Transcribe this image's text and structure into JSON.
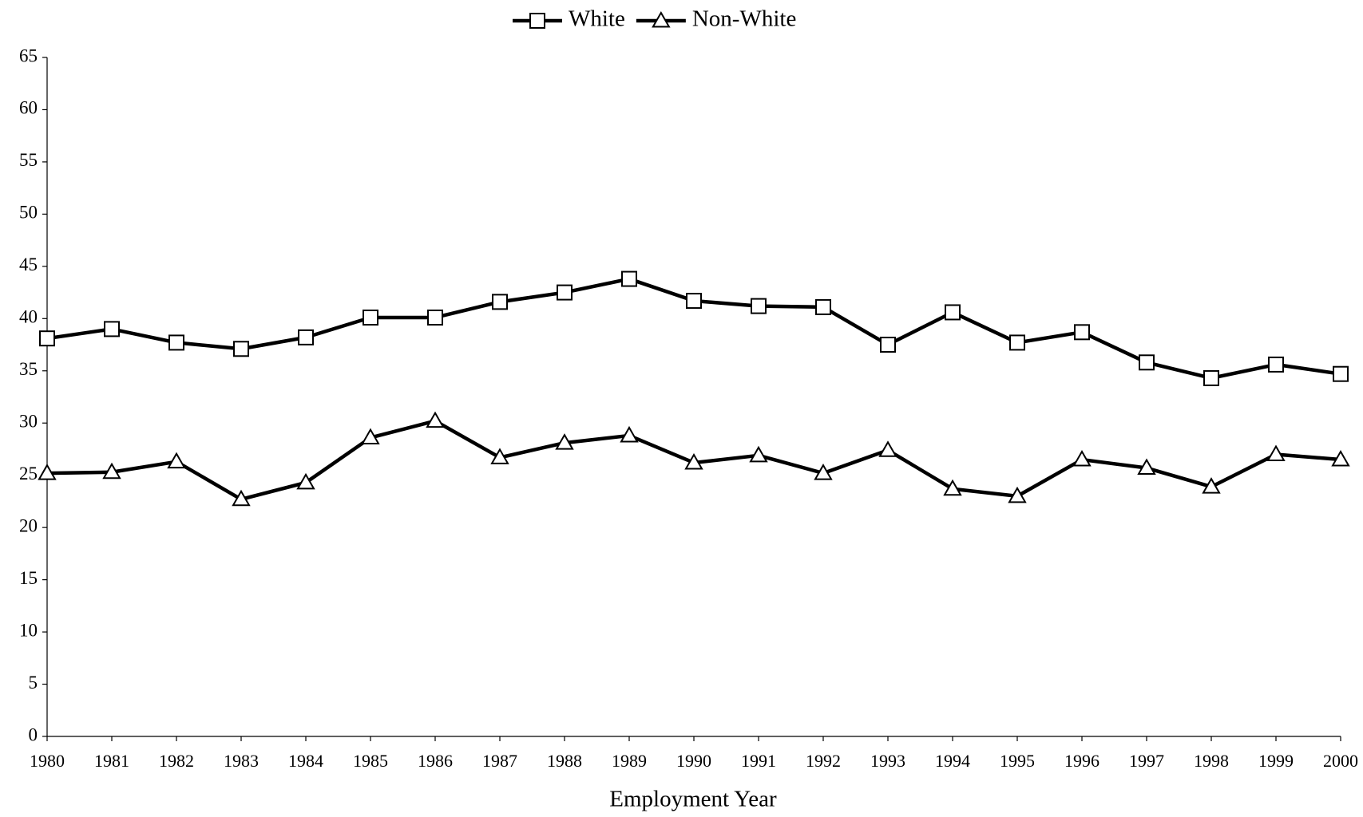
{
  "chart_data": {
    "type": "line",
    "x_label": "Employment Year",
    "categories": [
      "1980",
      "1981",
      "1982",
      "1983",
      "1984",
      "1985",
      "1986",
      "1987",
      "1988",
      "1989",
      "1990",
      "1991",
      "1992",
      "1993",
      "1994",
      "1995",
      "1996",
      "1997",
      "1998",
      "1999",
      "2000"
    ],
    "series": [
      {
        "name": "White",
        "color": "#000000",
        "marker": "square",
        "values": [
          38.1,
          39.0,
          37.7,
          37.1,
          38.2,
          40.1,
          40.1,
          41.6,
          42.5,
          43.8,
          41.7,
          41.2,
          41.1,
          37.5,
          40.6,
          37.7,
          38.7,
          35.8,
          34.3,
          35.6,
          34.7
        ]
      },
      {
        "name": "Non-White",
        "color": "#000000",
        "marker": "triangle",
        "values": [
          25.2,
          25.3,
          26.3,
          22.7,
          24.3,
          28.6,
          30.2,
          26.7,
          28.1,
          28.8,
          26.2,
          26.9,
          25.2,
          27.4,
          23.7,
          23.0,
          26.5,
          25.7,
          23.9,
          27.0,
          26.5
        ]
      }
    ],
    "ylim": [
      0,
      65
    ],
    "yticks": [
      0,
      5,
      10,
      15,
      20,
      25,
      30,
      35,
      40,
      45,
      50,
      55,
      60,
      65
    ],
    "grid": false,
    "legend": "top"
  }
}
